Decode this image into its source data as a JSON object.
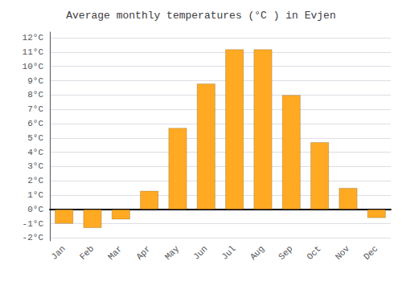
{
  "chart_data": {
    "type": "bar",
    "title": "Average monthly temperatures (°C ) in Evjen",
    "categories": [
      "Jan",
      "Feb",
      "Mar",
      "Apr",
      "May",
      "Jun",
      "Jul",
      "Aug",
      "Sep",
      "Oct",
      "Nov",
      "Dec"
    ],
    "values": [
      -1.0,
      -1.3,
      -0.7,
      1.3,
      5.7,
      8.8,
      11.2,
      11.2,
      8.0,
      4.7,
      1.5,
      -0.6
    ],
    "color": "#FFAA22",
    "ylim": [
      -2.2,
      12.4
    ],
    "yticks": [
      {
        "value": -2,
        "label": "-2°C"
      },
      {
        "value": -1,
        "label": "-1°C"
      },
      {
        "value": 0,
        "label": "0°C"
      },
      {
        "value": 1,
        "label": "1°C"
      },
      {
        "value": 2,
        "label": "2°C"
      },
      {
        "value": 3,
        "label": "3°C"
      },
      {
        "value": 4,
        "label": "4°C"
      },
      {
        "value": 5,
        "label": "5°C"
      },
      {
        "value": 6,
        "label": "6°C"
      },
      {
        "value": 7,
        "label": "7°C"
      },
      {
        "value": 8,
        "label": "8°C"
      },
      {
        "value": 9,
        "label": "9°C"
      },
      {
        "value": 10,
        "label": "10°C"
      },
      {
        "value": 11,
        "label": "11°C"
      },
      {
        "value": 12,
        "label": "12°C"
      }
    ],
    "grid": true
  }
}
